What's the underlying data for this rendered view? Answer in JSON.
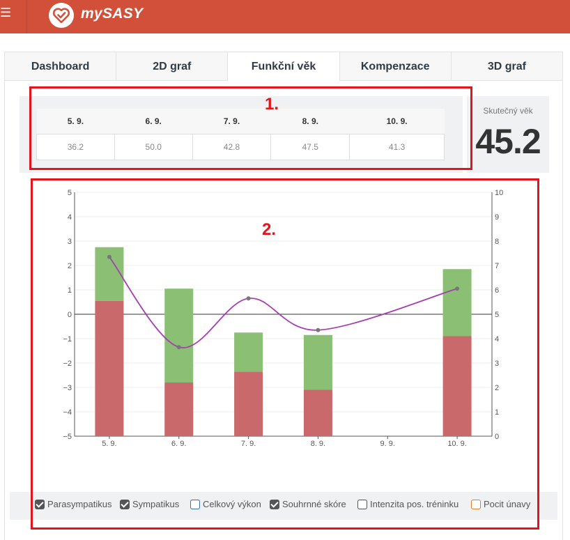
{
  "header": {
    "menu_icon": "☰",
    "app_title": "mySASY"
  },
  "tabs": [
    {
      "label": "Dashboard"
    },
    {
      "label": "2D graf"
    },
    {
      "label": "Funkční věk",
      "active": true
    },
    {
      "label": "Kompenzace"
    },
    {
      "label": "3D graf"
    }
  ],
  "age_table": {
    "headers": [
      "5. 9.",
      "6. 9.",
      "7. 9.",
      "8. 9.",
      "10. 9."
    ],
    "values": [
      "36.2",
      "50.0",
      "42.8",
      "47.5",
      "41.3"
    ]
  },
  "real_age": {
    "label": "Skutečný věk",
    "value": "45.2"
  },
  "annotations": {
    "one": "1.",
    "two": "2."
  },
  "chart_data": {
    "type": "bar",
    "categories": [
      "5. 9.",
      "6. 9.",
      "7. 9.",
      "8. 9.",
      "9. 9.",
      "10. 9."
    ],
    "y_left": {
      "min": -5,
      "max": 5,
      "ticks": [
        5,
        4,
        3,
        2,
        1,
        0,
        -1,
        -2,
        -3,
        -4,
        -5
      ]
    },
    "y_right": {
      "min": 0,
      "max": 10,
      "ticks": [
        10,
        9,
        8,
        7,
        6,
        5,
        4,
        3,
        2,
        1,
        0
      ]
    },
    "series": [
      {
        "name": "Parasympatikus",
        "color": "#c9696b",
        "type": "bar",
        "from": [
          -5,
          -5,
          -5,
          -5,
          null,
          -5
        ],
        "to": [
          0.55,
          -2.8,
          -2.35,
          -3.1,
          null,
          -0.9
        ]
      },
      {
        "name": "Sympatikus",
        "color": "#8bbf74",
        "type": "bar",
        "from": [
          0.55,
          -2.8,
          -2.35,
          -3.1,
          null,
          -0.9
        ],
        "to": [
          2.75,
          1.05,
          -0.75,
          -0.85,
          null,
          1.85
        ]
      },
      {
        "name": "Souhrnné skóre",
        "color": "#a43fb0",
        "type": "line",
        "axis": "right",
        "values": [
          7.35,
          3.65,
          5.65,
          4.35,
          null,
          6.05
        ]
      }
    ],
    "grid": true
  },
  "legend": [
    {
      "label": "Parasympatikus",
      "checked": true,
      "color": "#555555"
    },
    {
      "label": "Sympatikus",
      "checked": true,
      "color": "#555555"
    },
    {
      "label": "Celkový výkon",
      "checked": false,
      "color": "#3c6fa6"
    },
    {
      "label": "Souhrnné skóre",
      "checked": true,
      "color": "#555555"
    },
    {
      "label": "Intenzita pos. tréninku",
      "checked": false,
      "color": "#555555"
    },
    {
      "label": "Pocit únavy",
      "checked": false,
      "color": "#e07c2a"
    }
  ]
}
